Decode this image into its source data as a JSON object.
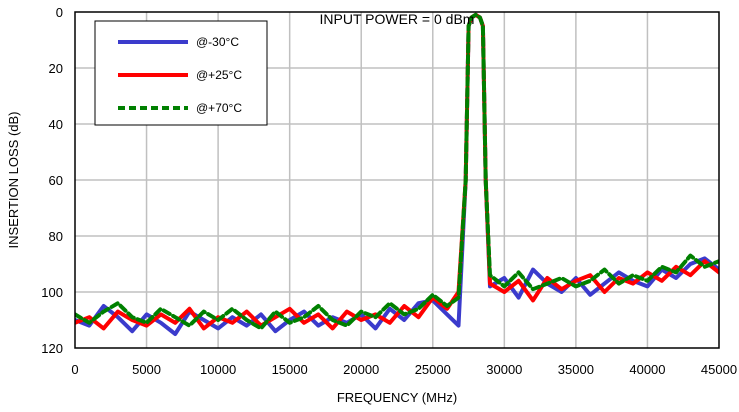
{
  "chart_data": {
    "type": "line",
    "title": "INPUT POWER = 0 dBm",
    "xlabel": "FREQUENCY (MHz)",
    "ylabel": "INSERTION LOSS (dB)",
    "xlim": [
      0,
      45000
    ],
    "ylim": [
      0,
      120
    ],
    "y_inverted": true,
    "xticks": [
      0,
      5000,
      10000,
      15000,
      20000,
      25000,
      30000,
      35000,
      40000,
      45000
    ],
    "yticks": [
      0,
      20,
      40,
      60,
      80,
      100,
      120
    ],
    "grid": true,
    "legend_position": "top-left",
    "series": [
      {
        "name": "@-30°C",
        "color": "#3b3bcc",
        "style": "solid",
        "x": [
          0,
          1000,
          2000,
          3000,
          4000,
          5000,
          6000,
          7000,
          8000,
          9000,
          10000,
          11000,
          12000,
          13000,
          14000,
          15000,
          16000,
          17000,
          18000,
          19000,
          20000,
          21000,
          22000,
          23000,
          24000,
          25000,
          26000,
          26800,
          27300,
          27500,
          27700,
          28000,
          28300,
          28500,
          28700,
          29000,
          30000,
          31000,
          32000,
          33000,
          34000,
          35000,
          36000,
          37000,
          38000,
          39000,
          40000,
          41000,
          42000,
          43000,
          44000,
          45000
        ],
        "y": [
          110,
          112,
          105,
          109,
          114,
          108,
          111,
          115,
          107,
          110,
          113,
          109,
          112,
          108,
          114,
          110,
          107,
          112,
          109,
          111,
          108,
          113,
          106,
          110,
          104,
          103,
          108,
          112,
          60,
          5,
          2,
          1,
          2,
          5,
          60,
          98,
          95,
          102,
          92,
          97,
          100,
          95,
          101,
          97,
          93,
          96,
          98,
          92,
          95,
          90,
          88,
          92
        ]
      },
      {
        "name": "@+25°C",
        "color": "#ff0000",
        "style": "solid",
        "x": [
          0,
          1000,
          2000,
          3000,
          4000,
          5000,
          6000,
          7000,
          8000,
          9000,
          10000,
          11000,
          12000,
          13000,
          14000,
          15000,
          16000,
          17000,
          18000,
          19000,
          20000,
          21000,
          22000,
          23000,
          24000,
          25000,
          26000,
          26800,
          27300,
          27500,
          27700,
          28000,
          28300,
          28500,
          28700,
          29000,
          30000,
          31000,
          32000,
          33000,
          34000,
          35000,
          36000,
          37000,
          38000,
          39000,
          40000,
          41000,
          42000,
          43000,
          44000,
          45000
        ],
        "y": [
          111,
          109,
          113,
          107,
          110,
          112,
          108,
          111,
          106,
          113,
          109,
          111,
          107,
          112,
          109,
          106,
          111,
          108,
          113,
          107,
          110,
          108,
          111,
          105,
          109,
          102,
          106,
          100,
          60,
          5,
          2,
          1,
          2,
          5,
          60,
          97,
          100,
          96,
          103,
          95,
          99,
          96,
          94,
          100,
          95,
          97,
          93,
          96,
          91,
          94,
          89,
          93
        ]
      },
      {
        "name": "@+70°C",
        "color": "#008000",
        "style": "dashed",
        "x": [
          0,
          1000,
          2000,
          3000,
          4000,
          5000,
          6000,
          7000,
          8000,
          9000,
          10000,
          11000,
          12000,
          13000,
          14000,
          15000,
          16000,
          17000,
          18000,
          19000,
          20000,
          21000,
          22000,
          23000,
          24000,
          25000,
          26000,
          26800,
          27300,
          27500,
          27700,
          28000,
          28300,
          28500,
          28700,
          29000,
          30000,
          31000,
          32000,
          33000,
          34000,
          35000,
          36000,
          37000,
          38000,
          39000,
          40000,
          41000,
          42000,
          43000,
          44000,
          45000
        ],
        "y": [
          108,
          111,
          107,
          104,
          109,
          111,
          106,
          109,
          112,
          107,
          110,
          106,
          110,
          113,
          107,
          111,
          109,
          105,
          110,
          112,
          107,
          109,
          104,
          108,
          106,
          101,
          105,
          102,
          60,
          5,
          2,
          1,
          2,
          5,
          60,
          94,
          98,
          93,
          99,
          97,
          95,
          98,
          96,
          92,
          97,
          94,
          96,
          91,
          93,
          87,
          91,
          89
        ]
      }
    ]
  }
}
